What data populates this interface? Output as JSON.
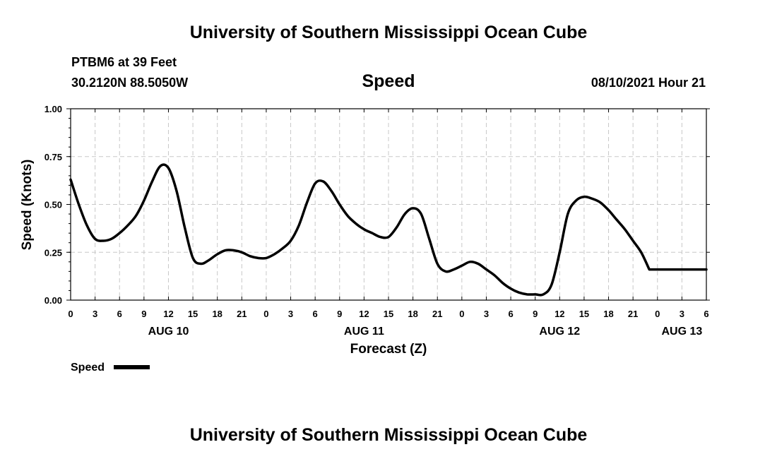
{
  "header": {
    "title": "University of Southern Mississippi Ocean Cube",
    "station": "PTBM6 at 39 Feet",
    "coords": "30.2120N  88.5050W",
    "variable": "Speed",
    "datetime": "08/10/2021 Hour 21",
    "footer_title": "University of Southern Mississippi Ocean Cube"
  },
  "chart_data": {
    "type": "line",
    "title": "Speed",
    "xlabel": "Forecast (Z)",
    "ylabel": "Speed (Knots)",
    "ylim": [
      0,
      1
    ],
    "xlim": [
      0,
      78
    ],
    "x_unit": "hours since AUG 10 00Z",
    "y_ticks": [
      "0.00",
      "0.25",
      "0.50",
      "0.75",
      "1.00"
    ],
    "x_tick_labels": [
      "0",
      "3",
      "6",
      "9",
      "12",
      "15",
      "18",
      "21",
      "0",
      "3",
      "6",
      "9",
      "12",
      "15",
      "18",
      "21",
      "0",
      "3",
      "6",
      "9",
      "12",
      "15",
      "18",
      "21",
      "0",
      "3",
      "6"
    ],
    "date_labels": [
      {
        "label": "AUG 10",
        "hour": 12
      },
      {
        "label": "AUG 11",
        "hour": 36
      },
      {
        "label": "AUG 12",
        "hour": 60
      },
      {
        "label": "AUG 13",
        "hour": 75
      }
    ],
    "grid": true,
    "legend": {
      "label": "Speed",
      "position": "bottom-left"
    },
    "series": [
      {
        "name": "Speed",
        "color": "#000000",
        "x": [
          0,
          1,
          2,
          3,
          4,
          5,
          6,
          7,
          8,
          9,
          10,
          11,
          12,
          13,
          14,
          15,
          16,
          17,
          18,
          19,
          20,
          21,
          22,
          23,
          24,
          25,
          26,
          27,
          28,
          29,
          30,
          31,
          32,
          33,
          34,
          35,
          36,
          37,
          38,
          39,
          40,
          41,
          42,
          43,
          44,
          45,
          46,
          47,
          48,
          49,
          50,
          51,
          52,
          53,
          54,
          55,
          56,
          57,
          58,
          59,
          60,
          61,
          62,
          63,
          64,
          65,
          66,
          67,
          68,
          69,
          70,
          71,
          72,
          73,
          74,
          75,
          76,
          77,
          78
        ],
        "values": [
          0.63,
          0.5,
          0.39,
          0.32,
          0.31,
          0.32,
          0.35,
          0.39,
          0.44,
          0.52,
          0.62,
          0.7,
          0.69,
          0.57,
          0.38,
          0.22,
          0.19,
          0.21,
          0.24,
          0.26,
          0.26,
          0.25,
          0.23,
          0.22,
          0.22,
          0.24,
          0.27,
          0.31,
          0.39,
          0.51,
          0.61,
          0.62,
          0.57,
          0.5,
          0.44,
          0.4,
          0.37,
          0.35,
          0.33,
          0.33,
          0.38,
          0.45,
          0.48,
          0.45,
          0.32,
          0.19,
          0.15,
          0.16,
          0.18,
          0.2,
          0.19,
          0.16,
          0.13,
          0.09,
          0.06,
          0.04,
          0.03,
          0.03,
          0.03,
          0.08,
          0.25,
          0.45,
          0.52,
          0.54,
          0.53,
          0.51,
          0.47,
          0.42,
          0.37,
          0.31,
          0.25,
          0.16,
          0.16,
          0.16,
          0.16,
          0.16,
          0.16,
          0.16,
          0.16
        ]
      }
    ]
  }
}
